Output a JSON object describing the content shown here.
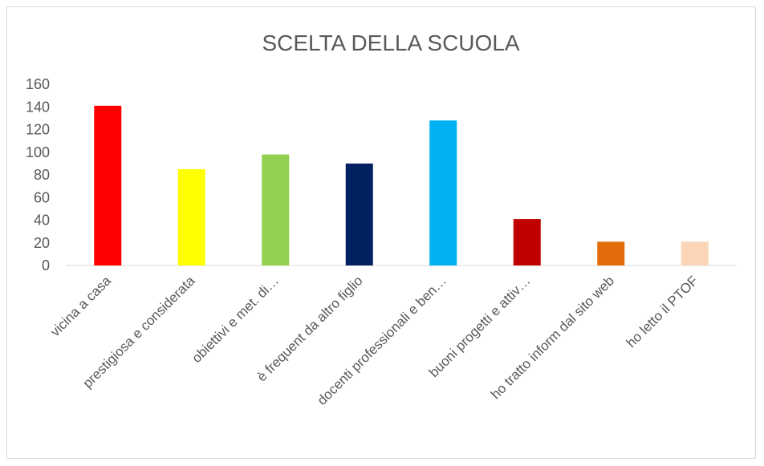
{
  "chart_data": {
    "type": "bar",
    "title": "SCELTA DELLA SCUOLA",
    "categories": [
      "vicina a casa",
      "prestigiosa e considerata",
      "obiettivi e met. di…",
      "è frequent da altro figlio",
      "docenti professionali e ben…",
      "buoni progetti e attiv…",
      "ho tratto inform dal sito web",
      "ho letto il PTOF"
    ],
    "values": [
      141,
      85,
      98,
      90,
      128,
      41,
      21,
      21
    ],
    "colors": [
      "#ff0000",
      "#ffff00",
      "#92d050",
      "#002060",
      "#00b0f0",
      "#c00000",
      "#e36c0a",
      "#fbd5b5"
    ],
    "yticks": [
      0,
      20,
      40,
      60,
      80,
      100,
      120,
      140,
      160
    ],
    "ylim": [
      0,
      160
    ],
    "grid": false,
    "legend": "none"
  }
}
